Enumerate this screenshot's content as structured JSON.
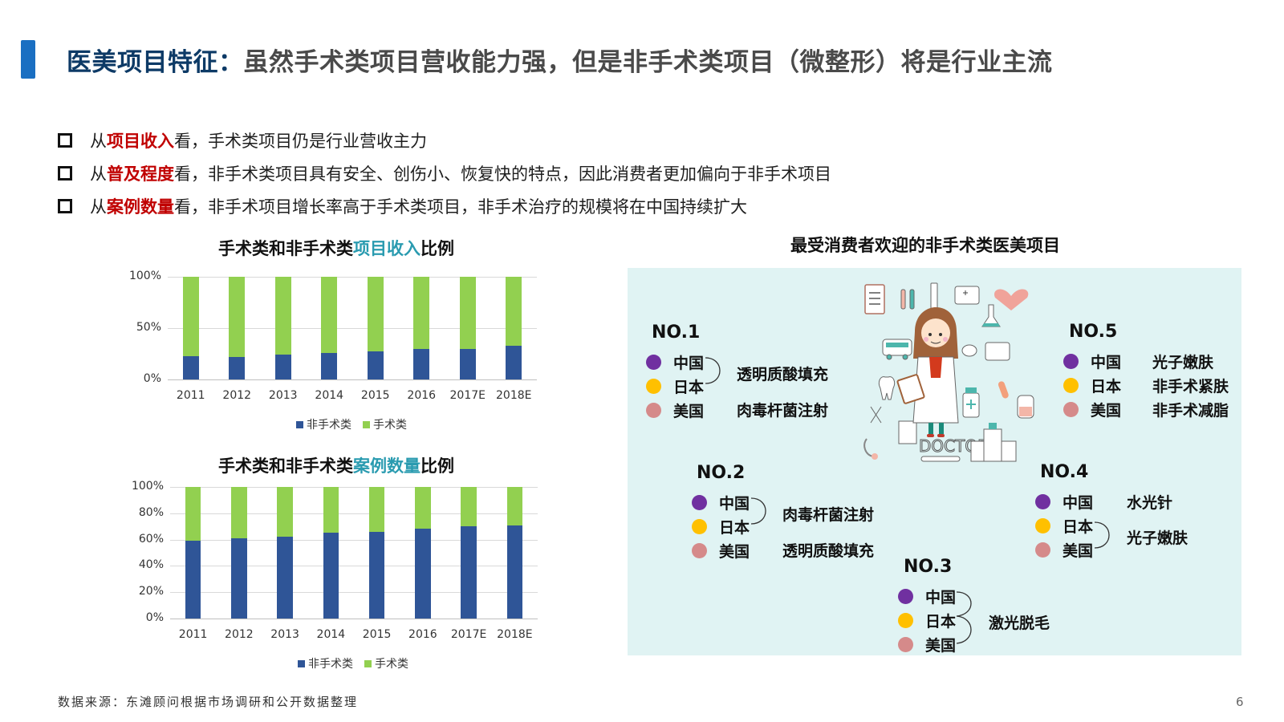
{
  "header": {
    "title_main": "医美项目特征：",
    "title_sub": "虽然手术类项目营收能力强，但是非手术类项目（微整形）将是行业主流"
  },
  "bullets": [
    {
      "prefix": "从",
      "highlight": "项目收入",
      "rest": "看，手术类项目仍是行业营收主力"
    },
    {
      "prefix": "从",
      "highlight": "普及程度",
      "rest": "看，非手术类项目具有安全、创伤小、恢复快的特点，因此消费者更加偏向于非手术项目"
    },
    {
      "prefix": "从",
      "highlight": "案例数量",
      "rest": "看，非手术项目增长率高于手术类项目，非手术治疗的规模将在中国持续扩大"
    }
  ],
  "colors": {
    "non_surgical": "#2f5597",
    "surgical": "#92d050",
    "highlight_red": "#c00000",
    "title_accent": "#2a9bb0",
    "title_blue": "#0d3a66",
    "panel_bg": "#e0f3f3",
    "china_dot": "#7030a0",
    "japan_dot": "#ffc000",
    "usa_dot": "#d58a8a"
  },
  "chart_data": [
    {
      "type": "bar",
      "stacked": true,
      "normalized": true,
      "title": "手术类和非手术类项目收入比例",
      "title_parts": {
        "pre": "手术类和非手术类",
        "accent": "项目收入",
        "post": "比例"
      },
      "categories": [
        "2011",
        "2012",
        "2013",
        "2014",
        "2015",
        "2016",
        "2017E",
        "2018E"
      ],
      "series": [
        {
          "name": "非手术类",
          "color": "#2f5597",
          "values": [
            23,
            22,
            24,
            26,
            27,
            30,
            30,
            33
          ]
        },
        {
          "name": "手术类",
          "color": "#92d050",
          "values": [
            77,
            78,
            76,
            74,
            73,
            70,
            70,
            67
          ]
        }
      ],
      "yticks": [
        "0%",
        "50%",
        "100%"
      ],
      "ylim": [
        0,
        100
      ],
      "xlabel": "",
      "ylabel": "",
      "grid": true,
      "legend_position": "bottom"
    },
    {
      "type": "bar",
      "stacked": true,
      "normalized": true,
      "title": "手术类和非手术类案例数量比例",
      "title_parts": {
        "pre": "手术类和非手术类",
        "accent": "案例数量",
        "post": "比例"
      },
      "categories": [
        "2011",
        "2012",
        "2013",
        "2014",
        "2015",
        "2016",
        "2017E",
        "2018E"
      ],
      "series": [
        {
          "name": "非手术类",
          "color": "#2f5597",
          "values": [
            59,
            61,
            62,
            65,
            66,
            68,
            70,
            71
          ]
        },
        {
          "name": "手术类",
          "color": "#92d050",
          "values": [
            41,
            39,
            38,
            35,
            34,
            32,
            30,
            29
          ]
        }
      ],
      "yticks": [
        "0%",
        "20%",
        "40%",
        "60%",
        "80%",
        "100%"
      ],
      "ylim": [
        0,
        100
      ],
      "xlabel": "",
      "ylabel": "",
      "grid": true,
      "legend_position": "bottom"
    }
  ],
  "panel": {
    "title": "最受消费者欢迎的非手术类医美项目",
    "illustration_label": "DOCTOR",
    "ranks": [
      {
        "label": "NO.1",
        "countries": [
          "中国",
          "日本",
          "美国"
        ],
        "items": [
          "透明质酸填充",
          "肉毒杆菌注射"
        ]
      },
      {
        "label": "NO.2",
        "countries": [
          "中国",
          "日本",
          "美国"
        ],
        "items": [
          "肉毒杆菌注射",
          "透明质酸填充"
        ]
      },
      {
        "label": "NO.3",
        "countries": [
          "中国",
          "日本",
          "美国"
        ],
        "items": [
          "激光脱毛"
        ]
      },
      {
        "label": "NO.4",
        "countries": [
          "中国",
          "日本",
          "美国"
        ],
        "items": [
          "水光针",
          "光子嫩肤"
        ]
      },
      {
        "label": "NO.5",
        "countries": [
          "中国",
          "日本",
          "美国"
        ],
        "items": [
          "光子嫩肤",
          "非手术紧肤",
          "非手术减脂"
        ]
      }
    ]
  },
  "footer": {
    "source": "数据来源：东滩顾问根据市场调研和公开数据整理",
    "page_number": "6"
  }
}
